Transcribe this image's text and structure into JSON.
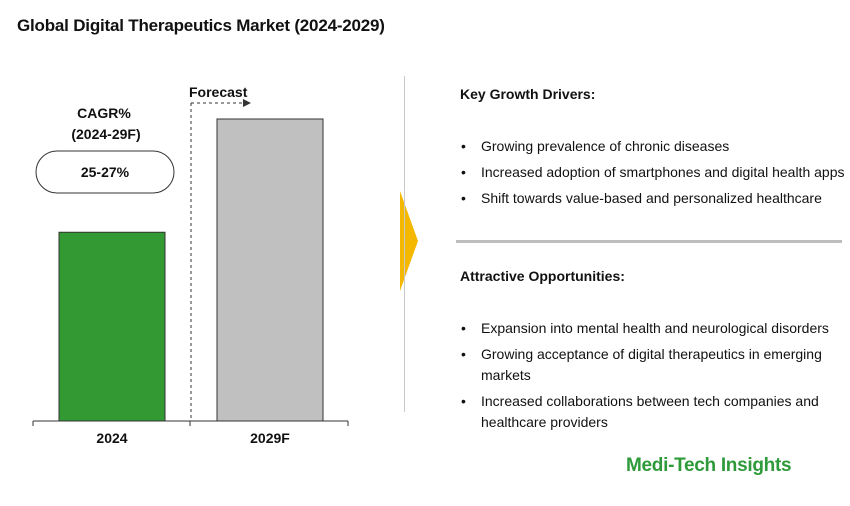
{
  "title": "Global Digital Therapeutics Market (2024-2029)",
  "chart_data": {
    "type": "bar",
    "categories": [
      "2024",
      "2029F"
    ],
    "values": [
      1.0,
      1.6
    ],
    "colors": [
      "#339933",
      "#c0c0c0"
    ],
    "forecast_label": "Forecast",
    "cagr_label_line1": "CAGR%",
    "cagr_label_line2": "(2024-29F)",
    "cagr_value": "25-27%",
    "grid": false
  },
  "drivers": {
    "heading": "Key Growth Drivers:",
    "items": [
      "Growing prevalence of chronic diseases",
      "Increased adoption of smartphones and digital health apps",
      "Shift towards value-based and personalized healthcare"
    ]
  },
  "opportunities": {
    "heading": "Attractive Opportunities:",
    "items": [
      "Expansion into mental health and neurological disorders",
      "Growing acceptance of digital therapeutics in emerging markets",
      "Increased collaborations between tech companies and healthcare providers"
    ]
  },
  "bullet_glyph": "•",
  "brand": {
    "name": "Medi-Tech Insights",
    "color": "#2e9a3a"
  },
  "accent": "#f5b800"
}
